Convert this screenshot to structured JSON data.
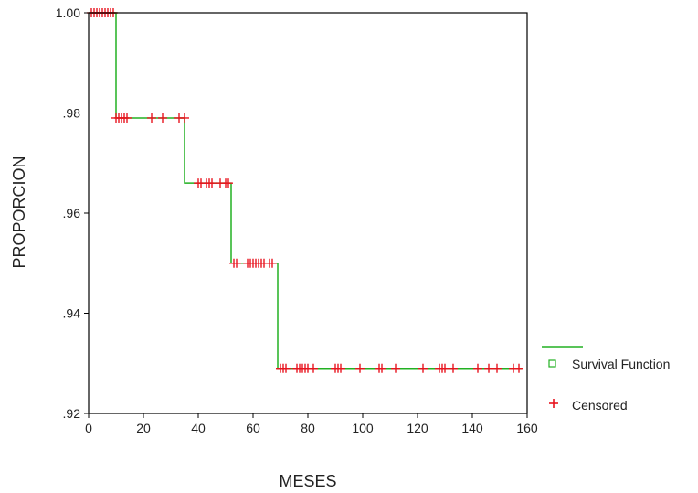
{
  "chart_data": {
    "type": "line",
    "title": "",
    "xlabel": "MESES",
    "ylabel": "PROPORCION",
    "xlim": [
      0,
      160
    ],
    "ylim": [
      0.92,
      1.0
    ],
    "x_ticks": [
      0,
      20,
      40,
      60,
      80,
      100,
      120,
      140,
      160
    ],
    "x_tick_labels": [
      "0",
      "20",
      "40",
      "60",
      "80",
      "100",
      "120",
      "140",
      "160"
    ],
    "y_ticks": [
      0.92,
      0.94,
      0.96,
      0.98,
      1.0
    ],
    "y_tick_labels": [
      ".92",
      ".94",
      ".96",
      ".98",
      "1.00"
    ],
    "grid": false,
    "legend_position": "right",
    "colors": {
      "survival": "#22b022",
      "censored": "#e8141e"
    },
    "series": [
      {
        "name": "Survival Function",
        "type": "step",
        "marker_name": "square-icon",
        "x": [
          0,
          10,
          35,
          52,
          69,
          158
        ],
        "y": [
          1.0,
          0.979,
          0.966,
          0.95,
          0.929,
          0.929
        ]
      },
      {
        "name": "Censored",
        "type": "scatter",
        "marker_name": "plus-icon",
        "x": [
          1,
          2,
          3,
          4,
          5,
          6,
          7,
          8,
          9,
          10,
          11,
          12,
          13,
          14,
          23,
          27,
          33,
          35,
          40,
          41,
          43,
          44,
          45,
          48,
          50,
          51,
          53,
          54,
          58,
          59,
          60,
          61,
          62,
          63,
          64,
          66,
          67,
          70,
          71,
          72,
          76,
          77,
          78,
          79,
          80,
          82,
          90,
          91,
          92,
          99,
          106,
          107,
          112,
          122,
          128,
          129,
          130,
          133,
          142,
          146,
          149,
          155,
          157
        ],
        "y": [
          1.0,
          1.0,
          1.0,
          1.0,
          1.0,
          1.0,
          1.0,
          1.0,
          1.0,
          0.979,
          0.979,
          0.979,
          0.979,
          0.979,
          0.979,
          0.979,
          0.979,
          0.979,
          0.966,
          0.966,
          0.966,
          0.966,
          0.966,
          0.966,
          0.966,
          0.966,
          0.95,
          0.95,
          0.95,
          0.95,
          0.95,
          0.95,
          0.95,
          0.95,
          0.95,
          0.95,
          0.95,
          0.929,
          0.929,
          0.929,
          0.929,
          0.929,
          0.929,
          0.929,
          0.929,
          0.929,
          0.929,
          0.929,
          0.929,
          0.929,
          0.929,
          0.929,
          0.929,
          0.929,
          0.929,
          0.929,
          0.929,
          0.929,
          0.929,
          0.929,
          0.929,
          0.929,
          0.929
        ]
      }
    ]
  }
}
